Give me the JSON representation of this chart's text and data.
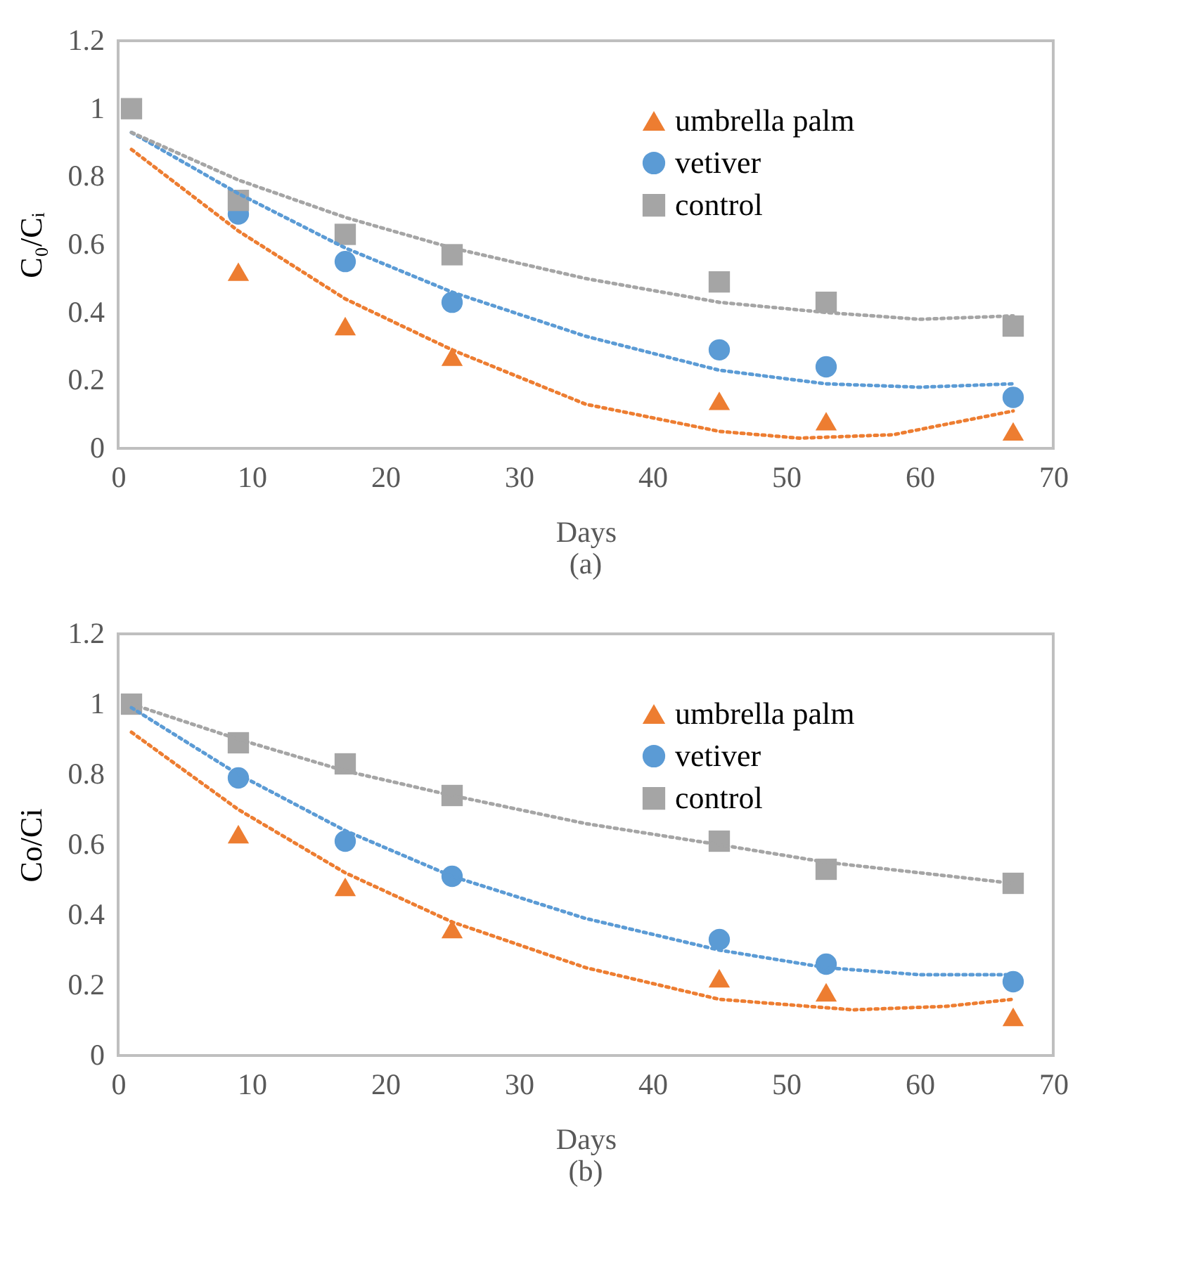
{
  "chart_data": [
    {
      "type": "scatter",
      "xlabel": "Days",
      "ylabel": "C₀/Cᵢ",
      "annotations": [
        "(a)"
      ],
      "x": [
        1,
        9,
        17,
        25,
        45,
        53,
        67
      ],
      "xlim": [
        0,
        70
      ],
      "xticks": [
        0,
        10,
        20,
        30,
        40,
        50,
        60,
        70
      ],
      "ylim": [
        0,
        1.2
      ],
      "yticks": [
        0,
        0.2,
        0.4,
        0.6,
        0.8,
        1,
        1.2
      ],
      "grid": false,
      "legend": "top right",
      "series": [
        {
          "name": "umbrella palm",
          "color": "#ed7d31",
          "marker": "triangle",
          "values": [
            null,
            0.52,
            0.36,
            0.27,
            0.14,
            0.08,
            0.05
          ]
        },
        {
          "name": "vetiver",
          "color": "#5b9bd5",
          "marker": "circle",
          "values": [
            null,
            0.69,
            0.55,
            0.43,
            0.29,
            0.24,
            0.15
          ]
        },
        {
          "name": "control",
          "color": "#a5a5a5",
          "marker": "square",
          "values": [
            1,
            0.73,
            0.63,
            0.57,
            0.49,
            0.43,
            0.36
          ]
        },
        {
          "type": "line",
          "color": "#ed7d31",
          "marker": "none",
          "line_style": "dotted",
          "x": [
            1,
            9,
            17,
            25,
            35,
            45,
            51,
            58,
            67
          ],
          "values": [
            0.88,
            0.64,
            0.44,
            0.29,
            0.13,
            0.05,
            0.03,
            0.04,
            0.11
          ]
        },
        {
          "type": "line",
          "color": "#5b9bd5",
          "marker": "none",
          "line_style": "dotted",
          "x": [
            1,
            9,
            17,
            25,
            35,
            45,
            53,
            60,
            67
          ],
          "values": [
            0.93,
            0.75,
            0.59,
            0.46,
            0.33,
            0.23,
            0.19,
            0.18,
            0.19
          ]
        },
        {
          "type": "line",
          "color": "#a5a5a5",
          "marker": "none",
          "line_style": "dotted",
          "x": [
            1,
            9,
            17,
            25,
            35,
            45,
            53,
            60,
            67
          ],
          "values": [
            0.93,
            0.79,
            0.68,
            0.59,
            0.5,
            0.43,
            0.4,
            0.38,
            0.39
          ]
        }
      ]
    },
    {
      "type": "scatter",
      "xlabel": "Days",
      "ylabel": "Co/Ci",
      "annotations": [
        "(b)"
      ],
      "x": [
        1,
        9,
        17,
        25,
        45,
        53,
        67
      ],
      "xlim": [
        0,
        70
      ],
      "xticks": [
        0,
        10,
        20,
        30,
        40,
        50,
        60,
        70
      ],
      "ylim": [
        0,
        1.2
      ],
      "yticks": [
        0,
        0.2,
        0.4,
        0.6,
        0.8,
        1,
        1.2
      ],
      "grid": false,
      "legend": "top right",
      "series": [
        {
          "name": "umbrella palm",
          "color": "#ed7d31",
          "marker": "triangle",
          "values": [
            null,
            0.63,
            0.48,
            0.36,
            0.22,
            0.18,
            0.11
          ]
        },
        {
          "name": "vetiver",
          "color": "#5b9bd5",
          "marker": "circle",
          "values": [
            null,
            0.79,
            0.61,
            0.51,
            0.33,
            0.26,
            0.21
          ]
        },
        {
          "name": "control",
          "color": "#a5a5a5",
          "marker": "square",
          "values": [
            1,
            0.89,
            0.83,
            0.74,
            0.61,
            0.53,
            0.49
          ]
        },
        {
          "type": "line",
          "color": "#ed7d31",
          "marker": "none",
          "line_style": "dotted",
          "x": [
            1,
            9,
            17,
            25,
            35,
            45,
            55,
            62,
            67
          ],
          "values": [
            0.92,
            0.7,
            0.52,
            0.38,
            0.25,
            0.16,
            0.13,
            0.14,
            0.16
          ]
        },
        {
          "type": "line",
          "color": "#5b9bd5",
          "marker": "none",
          "line_style": "dotted",
          "x": [
            1,
            9,
            17,
            25,
            35,
            45,
            53,
            60,
            67
          ],
          "values": [
            0.99,
            0.8,
            0.64,
            0.51,
            0.39,
            0.3,
            0.25,
            0.23,
            0.23
          ]
        },
        {
          "type": "line",
          "color": "#a5a5a5",
          "marker": "none",
          "line_style": "dotted",
          "x": [
            1,
            9,
            17,
            25,
            35,
            45,
            53,
            67
          ],
          "values": [
            1,
            0.9,
            0.81,
            0.74,
            0.66,
            0.6,
            0.55,
            0.49
          ]
        }
      ]
    }
  ]
}
